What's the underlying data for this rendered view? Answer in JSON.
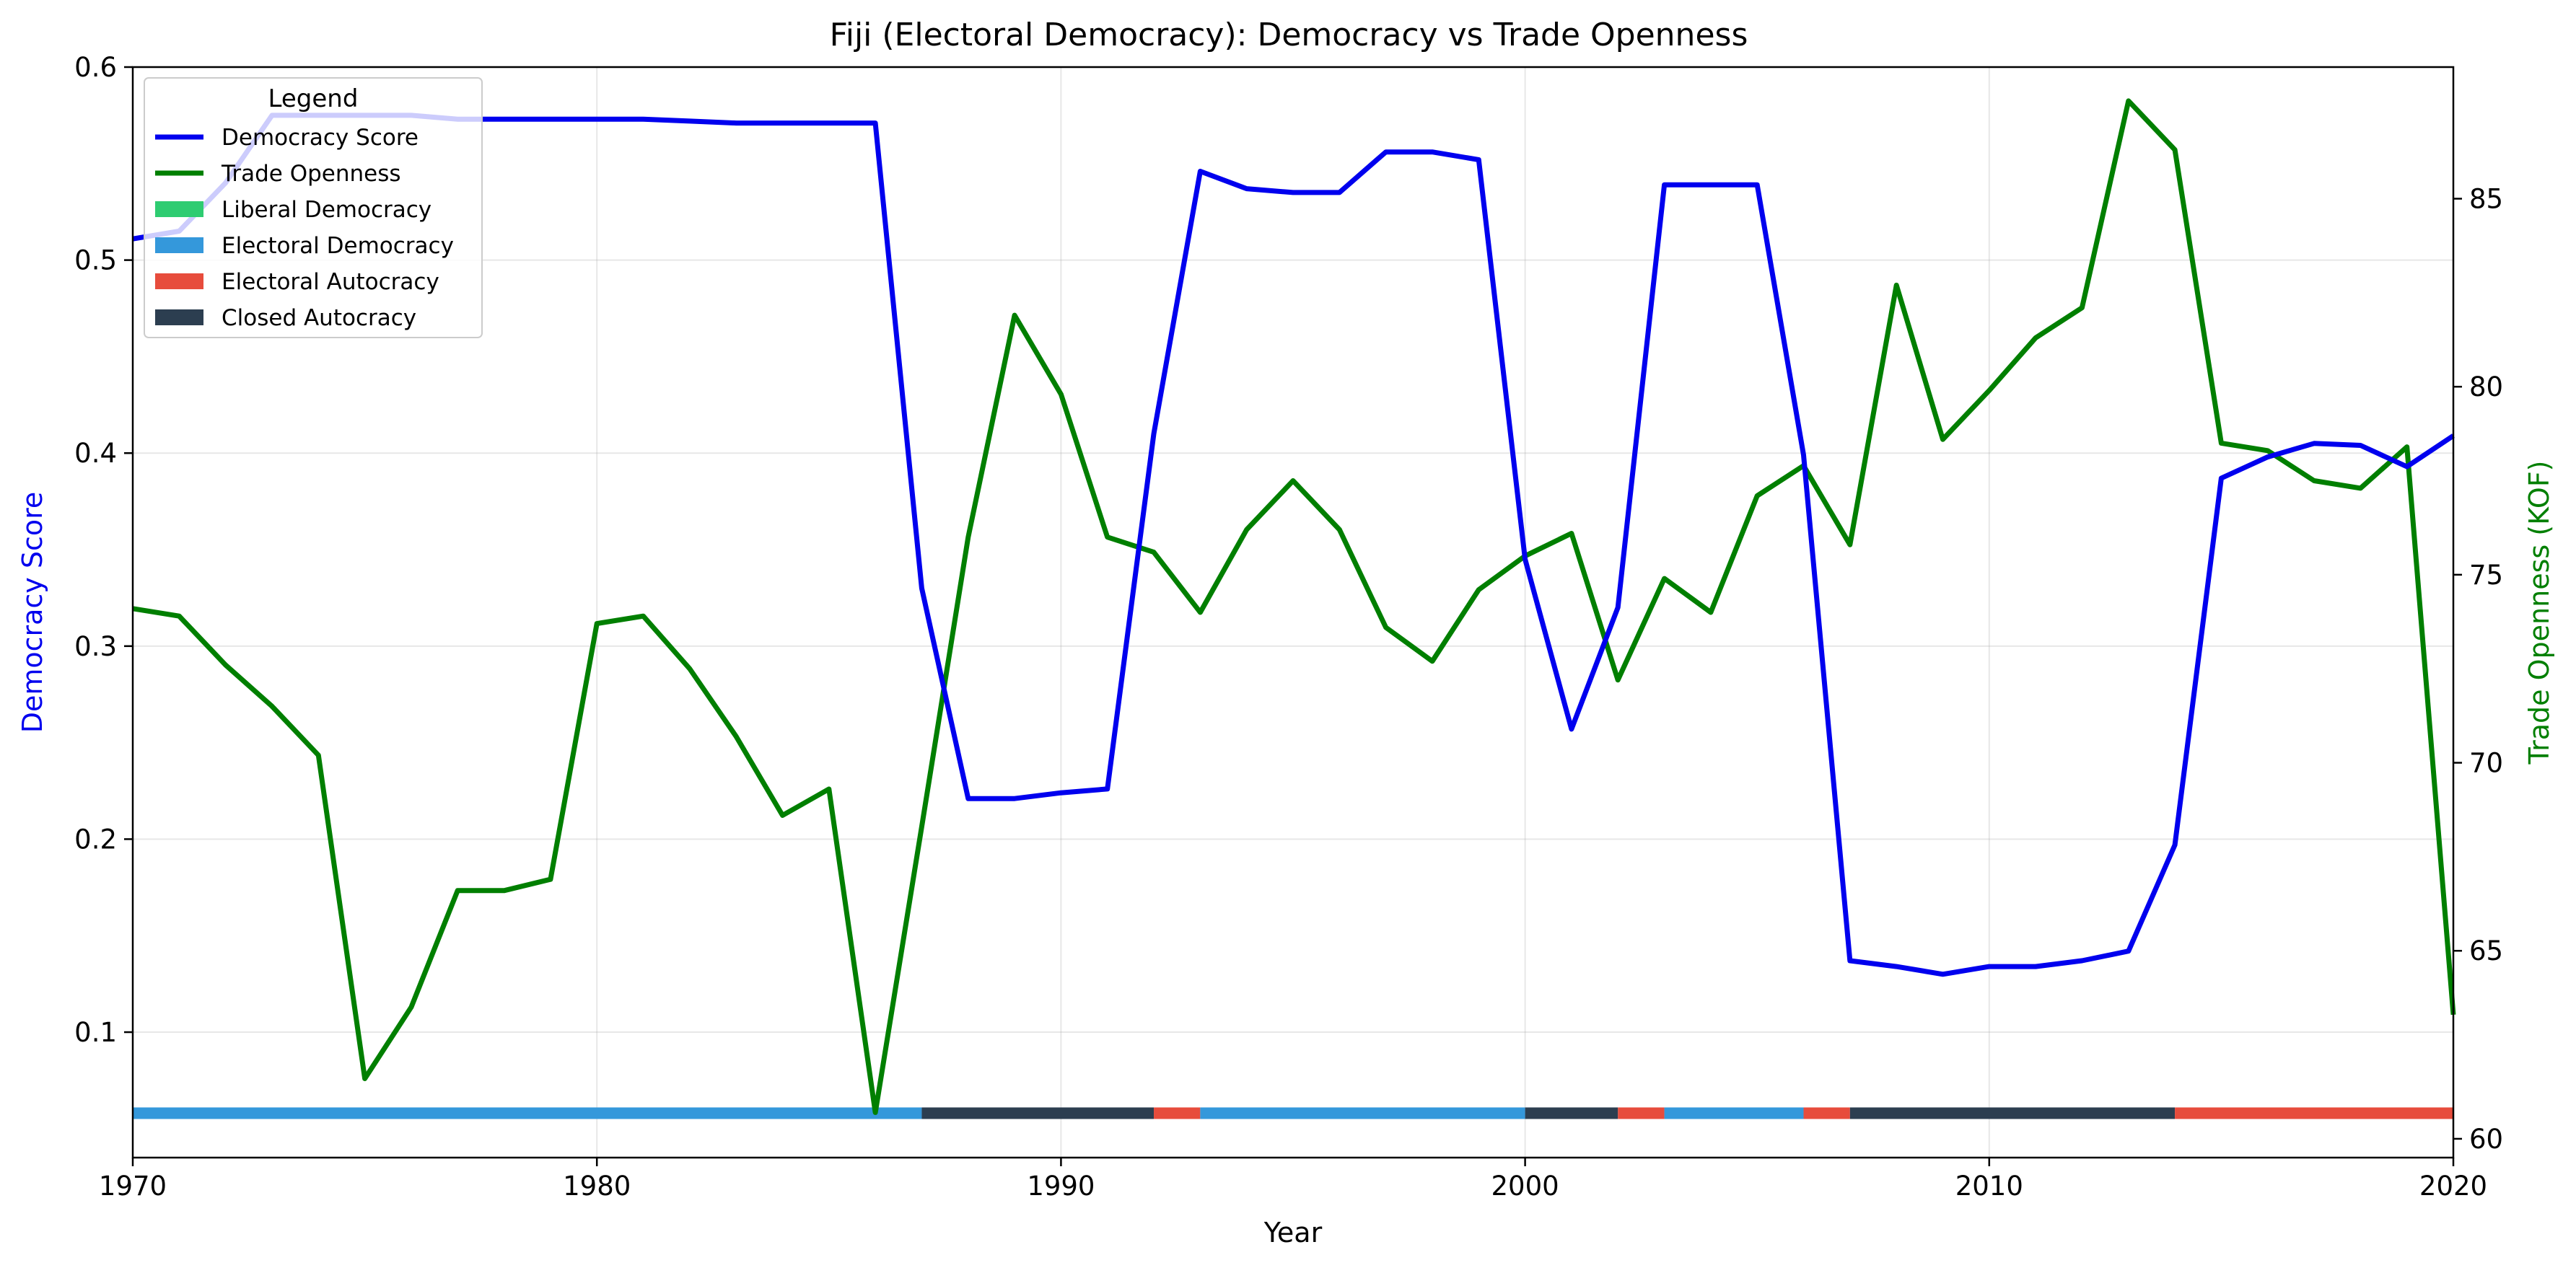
{
  "chart_data": {
    "type": "line",
    "title": "Fiji (Electoral Democracy): Democracy vs Trade Openness",
    "xlabel": "Year",
    "ylabel_left": "Democracy Score",
    "ylabel_right": "Trade Openness (KOF)",
    "xlim": [
      1970,
      2020
    ],
    "ylim_left": [
      0.035,
      0.6
    ],
    "ylim_right": [
      59.5,
      88.5
    ],
    "xticks": [
      1970,
      1980,
      1990,
      2000,
      2010,
      2020
    ],
    "yticks_left": [
      "0.1",
      "0.2",
      "0.3",
      "0.4",
      "0.5",
      "0.6"
    ],
    "yticks_right": [
      "60",
      "65",
      "70",
      "75",
      "80",
      "85"
    ],
    "grid": true,
    "legend_title": "Legend",
    "legend_position": "top-left",
    "colors": {
      "democracy": "#0000ee",
      "trade": "#007f00",
      "liberal_democracy": "#2ecc71",
      "electoral_democracy": "#3498db",
      "electoral_autocracy": "#e74c3c",
      "closed_autocracy": "#2c3e50"
    },
    "legend_items": [
      {
        "label": "Democracy Score",
        "kind": "line",
        "color": "#0000ee"
      },
      {
        "label": "Trade Openness",
        "kind": "line",
        "color": "#007f00"
      },
      {
        "label": "Liberal Democracy",
        "kind": "patch",
        "color": "#2ecc71"
      },
      {
        "label": "Electoral Democracy",
        "kind": "patch",
        "color": "#3498db"
      },
      {
        "label": "Electoral Autocracy",
        "kind": "patch",
        "color": "#e74c3c"
      },
      {
        "label": "Closed Autocracy",
        "kind": "patch",
        "color": "#2c3e50"
      }
    ],
    "series": [
      {
        "name": "Democracy Score",
        "axis": "left",
        "x": [
          1970,
          1971,
          1972,
          1973,
          1974,
          1975,
          1976,
          1977,
          1978,
          1979,
          1980,
          1981,
          1982,
          1983,
          1984,
          1985,
          1986,
          1987,
          1988,
          1989,
          1990,
          1991,
          1992,
          1993,
          1994,
          1995,
          1996,
          1997,
          1998,
          1999,
          2000,
          2001,
          2002,
          2003,
          2004,
          2005,
          2006,
          2007,
          2008,
          2009,
          2010,
          2011,
          2012,
          2013,
          2014,
          2015,
          2016,
          2017,
          2018,
          2019,
          2020
        ],
        "values": [
          0.511,
          0.515,
          0.54,
          0.575,
          0.575,
          0.575,
          0.575,
          0.573,
          0.573,
          0.573,
          0.573,
          0.573,
          0.572,
          0.571,
          0.571,
          0.571,
          0.571,
          0.33,
          0.221,
          0.221,
          0.224,
          0.226,
          0.41,
          0.546,
          0.537,
          0.535,
          0.535,
          0.556,
          0.556,
          0.552,
          0.345,
          0.257,
          0.32,
          0.539,
          0.539,
          0.539,
          0.399,
          0.137,
          0.134,
          0.13,
          0.134,
          0.134,
          0.137,
          0.142,
          0.197,
          0.387,
          0.398,
          0.405,
          0.404,
          0.393,
          0.409
        ]
      },
      {
        "name": "Trade Openness",
        "axis": "right",
        "x": [
          1970,
          1971,
          1972,
          1973,
          1974,
          1975,
          1976,
          1977,
          1978,
          1979,
          1980,
          1981,
          1982,
          1983,
          1984,
          1985,
          1986,
          1987,
          1988,
          1989,
          1990,
          1991,
          1992,
          1993,
          1994,
          1995,
          1996,
          1997,
          1998,
          1999,
          2000,
          2001,
          2002,
          2003,
          2004,
          2005,
          2006,
          2007,
          2008,
          2009,
          2010,
          2011,
          2012,
          2013,
          2014,
          2015,
          2016,
          2017,
          2018,
          2019,
          2020
        ],
        "values": [
          74.1,
          73.9,
          72.6,
          71.5,
          70.2,
          61.6,
          63.5,
          66.6,
          66.6,
          66.9,
          73.7,
          73.9,
          72.5,
          70.7,
          68.6,
          69.3,
          60.7,
          68.3,
          76.0,
          81.9,
          79.8,
          76.0,
          75.6,
          74.0,
          76.2,
          77.5,
          76.2,
          73.6,
          72.7,
          74.6,
          75.5,
          76.1,
          72.2,
          74.9,
          74.0,
          77.1,
          77.9,
          75.8,
          82.7,
          78.6,
          79.9,
          81.3,
          82.1,
          87.6,
          86.3,
          78.5,
          78.3,
          77.5,
          77.3,
          78.4,
          63.3
        ]
      }
    ],
    "regime_bands": [
      {
        "start": 1970,
        "end": 1987,
        "regime": "Electoral Democracy"
      },
      {
        "start": 1987,
        "end": 1992,
        "regime": "Closed Autocracy"
      },
      {
        "start": 1992,
        "end": 1993,
        "regime": "Electoral Autocracy"
      },
      {
        "start": 1993,
        "end": 2000,
        "regime": "Electoral Democracy"
      },
      {
        "start": 2000,
        "end": 2002,
        "regime": "Closed Autocracy"
      },
      {
        "start": 2002,
        "end": 2003,
        "regime": "Electoral Autocracy"
      },
      {
        "start": 2003,
        "end": 2006,
        "regime": "Electoral Democracy"
      },
      {
        "start": 2006,
        "end": 2007,
        "regime": "Electoral Autocracy"
      },
      {
        "start": 2007,
        "end": 2014,
        "regime": "Closed Autocracy"
      },
      {
        "start": 2014,
        "end": 2020,
        "regime": "Electoral Autocracy"
      }
    ],
    "regime_band_level": 0.058
  }
}
